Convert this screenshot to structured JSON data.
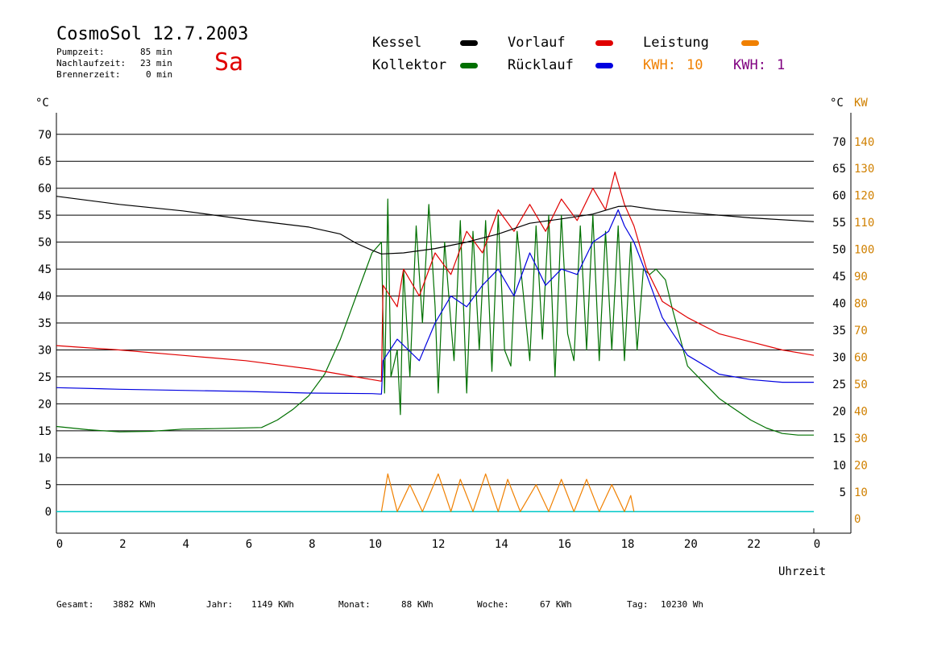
{
  "header": {
    "title": "CosmoSol 12.7.2003",
    "day": "Sa",
    "stats": [
      {
        "label": "Pumpzeit:",
        "value": "85 min"
      },
      {
        "label": "Nachlaufzeit:",
        "value": "23 min"
      },
      {
        "label": "Brennerzeit:",
        "value": "0 min"
      }
    ]
  },
  "legend": {
    "kessel": "Kessel",
    "kollektor": "Kollektor",
    "vorlauf": "Vorlauf",
    "ruecklauf": "Rücklauf",
    "leistung": "Leistung",
    "kwh1_label": "KWH:",
    "kwh1_value": "10",
    "kwh2_label": "KWH:",
    "kwh2_value": "1"
  },
  "colors": {
    "kessel": "#000000",
    "kollektor": "#007000",
    "vorlauf": "#e00000",
    "ruecklauf": "#0000e0",
    "leistung": "#f08000",
    "kwh2": "#800080",
    "baseline": "#00c8c8"
  },
  "footer": {
    "gesamt_label": "Gesamt:",
    "gesamt_value": "3882 KWh",
    "jahr_label": "Jahr:",
    "jahr_value": "1149 KWh",
    "monat_label": "Monat:",
    "monat_value": "88 KWh",
    "woche_label": "Woche:",
    "woche_value": "67 KWh",
    "tag_label": "Tag:",
    "tag_value": "10230 Wh"
  },
  "chart_data": {
    "type": "line",
    "xlabel": "Uhrzeit",
    "x_ticks": [
      "0",
      "2",
      "4",
      "6",
      "8",
      "10",
      "12",
      "14",
      "16",
      "18",
      "20",
      "22",
      "0"
    ],
    "xlim": [
      0,
      24
    ],
    "ylabel_left": "°C",
    "ylabel_right": "°C",
    "ylabel_right2": "KW",
    "ylim": [
      -4,
      74
    ],
    "y_ticks_left": [
      "0",
      "5",
      "10",
      "15",
      "20",
      "25",
      "30",
      "35",
      "40",
      "45",
      "50",
      "55",
      "60",
      "65",
      "70"
    ],
    "y_ticks_right": [
      "5",
      "10",
      "15",
      "20",
      "25",
      "30",
      "35",
      "40",
      "45",
      "50",
      "55",
      "60",
      "65",
      "70"
    ],
    "y_ticks_kw": [
      "0",
      "10",
      "20",
      "30",
      "40",
      "50",
      "60",
      "70",
      "80",
      "90",
      "100",
      "110",
      "120",
      "130",
      "140"
    ],
    "grid": true,
    "series": [
      {
        "name": "Kessel",
        "points": [
          [
            0,
            58.5
          ],
          [
            2,
            57
          ],
          [
            4,
            55.8
          ],
          [
            6,
            54.2
          ],
          [
            8,
            52.8
          ],
          [
            9,
            51.5
          ],
          [
            9.5,
            49.8
          ],
          [
            10,
            48.5
          ],
          [
            10.3,
            47.8
          ],
          [
            11,
            48
          ],
          [
            12,
            48.8
          ],
          [
            13,
            50
          ],
          [
            14,
            51.5
          ],
          [
            15,
            53.5
          ],
          [
            16,
            54.3
          ],
          [
            17,
            55.2
          ],
          [
            17.8,
            56.6
          ],
          [
            18.2,
            56.7
          ],
          [
            19,
            56
          ],
          [
            20,
            55.5
          ],
          [
            22,
            54.5
          ],
          [
            24,
            53.8
          ]
        ]
      },
      {
        "name": "Kollektor",
        "points": [
          [
            0,
            15.8
          ],
          [
            1,
            15.2
          ],
          [
            2,
            14.8
          ],
          [
            3,
            14.9
          ],
          [
            4,
            15.3
          ],
          [
            5,
            15.4
          ],
          [
            6.5,
            15.6
          ],
          [
            7,
            17
          ],
          [
            7.5,
            19
          ],
          [
            8,
            21.5
          ],
          [
            8.5,
            25.5
          ],
          [
            9,
            32
          ],
          [
            9.5,
            40
          ],
          [
            10,
            48
          ],
          [
            10.3,
            50
          ],
          [
            10.4,
            22
          ],
          [
            10.5,
            58
          ],
          [
            10.6,
            25
          ],
          [
            10.8,
            30
          ],
          [
            10.9,
            18
          ],
          [
            11,
            45
          ],
          [
            11.2,
            25
          ],
          [
            11.4,
            53
          ],
          [
            11.6,
            35
          ],
          [
            11.8,
            57
          ],
          [
            12,
            38
          ],
          [
            12.1,
            22
          ],
          [
            12.3,
            50
          ],
          [
            12.5,
            35
          ],
          [
            12.6,
            28
          ],
          [
            12.8,
            54
          ],
          [
            13,
            22
          ],
          [
            13.2,
            52
          ],
          [
            13.4,
            30
          ],
          [
            13.6,
            54
          ],
          [
            13.8,
            26
          ],
          [
            14,
            55
          ],
          [
            14.2,
            30
          ],
          [
            14.4,
            27
          ],
          [
            14.6,
            52
          ],
          [
            14.8,
            40
          ],
          [
            15,
            28
          ],
          [
            15.2,
            53
          ],
          [
            15.4,
            32
          ],
          [
            15.6,
            55
          ],
          [
            15.8,
            25
          ],
          [
            16,
            55
          ],
          [
            16.2,
            33
          ],
          [
            16.4,
            28
          ],
          [
            16.6,
            53
          ],
          [
            16.8,
            30
          ],
          [
            17,
            55
          ],
          [
            17.2,
            28
          ],
          [
            17.4,
            52
          ],
          [
            17.6,
            30
          ],
          [
            17.8,
            53
          ],
          [
            18,
            28
          ],
          [
            18.2,
            50
          ],
          [
            18.4,
            30
          ],
          [
            18.6,
            45
          ],
          [
            18.8,
            44
          ],
          [
            19,
            45
          ],
          [
            19.3,
            43
          ],
          [
            19.5,
            38
          ],
          [
            20,
            27
          ],
          [
            20.5,
            24
          ],
          [
            21,
            21
          ],
          [
            21.5,
            19
          ],
          [
            22,
            17
          ],
          [
            22.5,
            15.5
          ],
          [
            23,
            14.5
          ],
          [
            23.5,
            14.2
          ],
          [
            24,
            14.2
          ]
        ]
      },
      {
        "name": "Vorlauf",
        "points": [
          [
            0,
            30.8
          ],
          [
            2,
            30
          ],
          [
            4,
            29
          ],
          [
            6,
            28
          ],
          [
            8,
            26.5
          ],
          [
            9,
            25.5
          ],
          [
            10,
            24.5
          ],
          [
            10.3,
            24.2
          ],
          [
            10.35,
            42
          ],
          [
            10.8,
            38
          ],
          [
            11,
            45
          ],
          [
            11.5,
            40
          ],
          [
            12,
            48
          ],
          [
            12.5,
            44
          ],
          [
            13,
            52
          ],
          [
            13.5,
            48
          ],
          [
            14,
            56
          ],
          [
            14.5,
            52
          ],
          [
            15,
            57
          ],
          [
            15.5,
            52
          ],
          [
            16,
            58
          ],
          [
            16.5,
            54
          ],
          [
            17,
            60
          ],
          [
            17.4,
            56
          ],
          [
            17.7,
            63
          ],
          [
            18,
            57
          ],
          [
            18.3,
            53
          ],
          [
            18.7,
            45
          ],
          [
            19.2,
            39
          ],
          [
            20,
            36
          ],
          [
            21,
            33
          ],
          [
            22,
            31.5
          ],
          [
            23,
            30
          ],
          [
            24,
            29
          ]
        ]
      },
      {
        "name": "Rücklauf",
        "points": [
          [
            0,
            23
          ],
          [
            2,
            22.7
          ],
          [
            4,
            22.5
          ],
          [
            6,
            22.3
          ],
          [
            8,
            22
          ],
          [
            10,
            21.9
          ],
          [
            10.3,
            21.8
          ],
          [
            10.35,
            28
          ],
          [
            10.8,
            32
          ],
          [
            11.5,
            28
          ],
          [
            12,
            35
          ],
          [
            12.5,
            40
          ],
          [
            13,
            38
          ],
          [
            13.5,
            42
          ],
          [
            14,
            45
          ],
          [
            14.5,
            40
          ],
          [
            15,
            48
          ],
          [
            15.5,
            42
          ],
          [
            16,
            45
          ],
          [
            16.5,
            44
          ],
          [
            17,
            50
          ],
          [
            17.5,
            52
          ],
          [
            17.8,
            56
          ],
          [
            18,
            53
          ],
          [
            18.3,
            50
          ],
          [
            18.7,
            44
          ],
          [
            19.2,
            36
          ],
          [
            20,
            29
          ],
          [
            21,
            25.5
          ],
          [
            22,
            24.5
          ],
          [
            23,
            24
          ],
          [
            24,
            24
          ]
        ]
      },
      {
        "name": "Leistung",
        "points": [
          [
            10.3,
            0
          ],
          [
            10.5,
            7
          ],
          [
            10.8,
            0
          ],
          [
            11.2,
            5
          ],
          [
            11.6,
            0
          ],
          [
            12.1,
            7
          ],
          [
            12.5,
            0
          ],
          [
            12.8,
            6
          ],
          [
            13.2,
            0
          ],
          [
            13.6,
            7
          ],
          [
            14,
            0
          ],
          [
            14.3,
            6
          ],
          [
            14.7,
            0
          ],
          [
            15.2,
            5
          ],
          [
            15.6,
            0
          ],
          [
            16,
            6
          ],
          [
            16.4,
            0
          ],
          [
            16.8,
            6
          ],
          [
            17.2,
            0
          ],
          [
            17.6,
            5
          ],
          [
            18,
            0
          ],
          [
            18.2,
            3
          ],
          [
            18.3,
            0
          ]
        ]
      }
    ]
  }
}
